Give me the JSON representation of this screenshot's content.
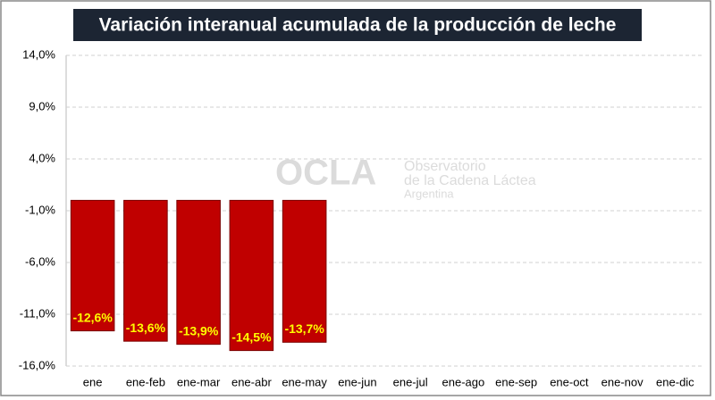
{
  "chart_data": {
    "type": "bar",
    "title": "Variación interanual acumulada de la producción de leche",
    "categories": [
      "ene",
      "ene-feb",
      "ene-mar",
      "ene-abr",
      "ene-may",
      "ene-jun",
      "ene-jul",
      "ene-ago",
      "ene-sep",
      "ene-oct",
      "ene-nov",
      "ene-dic"
    ],
    "values": [
      -12.6,
      -13.6,
      -13.9,
      -14.5,
      -13.7,
      null,
      null,
      null,
      null,
      null,
      null,
      null
    ],
    "value_labels": [
      "-12,6%",
      "-13,6%",
      "-13,9%",
      "-14,5%",
      "-13,7%",
      null,
      null,
      null,
      null,
      null,
      null,
      null
    ],
    "color": "#c00000",
    "ylim": [
      -16,
      14
    ],
    "yticks": [
      {
        "value": -16,
        "label": "-16,0%"
      },
      {
        "value": -11,
        "label": "-11,0%"
      },
      {
        "value": -6,
        "label": "-6,0%"
      },
      {
        "value": -1,
        "label": "-1,0%"
      },
      {
        "value": 4,
        "label": "4,0%"
      },
      {
        "value": 9,
        "label": "9,0%"
      },
      {
        "value": 14,
        "label": "14,0%"
      }
    ],
    "grid": true,
    "annotations": [
      "OCLA",
      "Observatorio",
      "de la Cadena Láctea",
      "Argentina"
    ]
  }
}
